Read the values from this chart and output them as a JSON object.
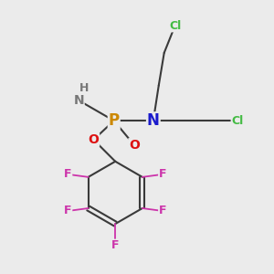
{
  "background_color": "#ebebeb",
  "figsize": [
    3.0,
    3.0
  ],
  "dpi": 100,
  "colors": {
    "C": "#3a3a3a",
    "N": "#1a1acc",
    "NH": "#777777",
    "P": "#cc8800",
    "O": "#dd1111",
    "F": "#cc33aa",
    "Cl": "#44bb44",
    "bond": "#3a3a3a"
  },
  "font_sizes": {
    "large": 12,
    "medium": 10,
    "small": 9
  }
}
